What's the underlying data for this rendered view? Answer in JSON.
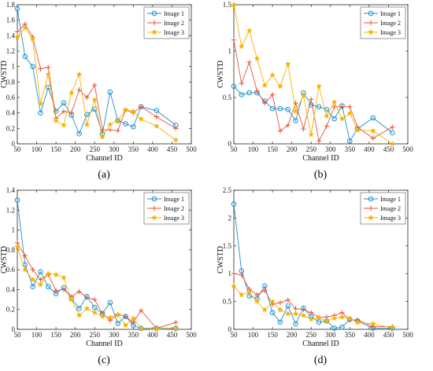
{
  "figure": {
    "legend_placement": "top-right",
    "grid": false,
    "styles": [
      {
        "color": "#1f8fd0",
        "marker": "circle"
      },
      {
        "color": "#e8553a",
        "marker": "plus"
      },
      {
        "color": "#f5b400",
        "marker": "star"
      }
    ]
  },
  "chart_data": [
    {
      "type": "line",
      "caption": "(a)",
      "xlabel": "Channel ID",
      "ylabel": "CWSTD",
      "xlim": [
        50,
        500
      ],
      "ylim": [
        0,
        1.8
      ],
      "xticks": [
        "50",
        "100",
        "150",
        "200",
        "250",
        "300",
        "350",
        "400",
        "450",
        "500"
      ],
      "yticks": [
        "0",
        "0.2",
        "0.4",
        "0.6",
        "0.8",
        "1",
        "1.2",
        "1.4",
        "1.6",
        "1.8"
      ],
      "series": [
        {
          "name": "Image 1",
          "x": [
            50,
            70,
            90,
            110,
            130,
            150,
            170,
            190,
            210,
            230,
            250,
            270,
            290,
            310,
            330,
            350,
            370,
            410,
            460
          ],
          "y": [
            1.75,
            1.13,
            1.0,
            0.4,
            0.73,
            0.42,
            0.53,
            0.37,
            0.13,
            0.38,
            0.45,
            0.13,
            0.67,
            0.3,
            0.26,
            0.22,
            0.48,
            0.43,
            0.24
          ]
        },
        {
          "name": "Image 2",
          "x": [
            50,
            70,
            90,
            110,
            130,
            150,
            170,
            190,
            210,
            230,
            250,
            270,
            290,
            310,
            330,
            350,
            370,
            410,
            460
          ],
          "y": [
            1.45,
            1.55,
            1.38,
            0.97,
            0.99,
            0.33,
            0.42,
            0.4,
            0.7,
            0.6,
            0.76,
            0.18,
            0.18,
            0.17,
            0.44,
            0.4,
            0.48,
            0.35,
            0.2
          ]
        },
        {
          "name": "Image 3",
          "x": [
            50,
            70,
            90,
            110,
            130,
            150,
            170,
            190,
            210,
            230,
            250,
            270,
            290,
            310,
            330,
            350,
            370,
            410,
            460
          ],
          "y": [
            1.38,
            1.5,
            1.35,
            0.52,
            0.9,
            0.3,
            0.24,
            0.66,
            0.9,
            0.25,
            0.57,
            0.09,
            0.25,
            0.3,
            0.44,
            0.42,
            0.32,
            0.23,
            0.05
          ]
        }
      ]
    },
    {
      "type": "line",
      "caption": "(b)",
      "xlabel": "Channel ID",
      "ylabel": "CWSTD",
      "xlim": [
        50,
        500
      ],
      "ylim": [
        0,
        1.5
      ],
      "xticks": [
        "50",
        "100",
        "150",
        "200",
        "250",
        "300",
        "350",
        "400",
        "450",
        "500"
      ],
      "yticks": [
        "0",
        "0.5",
        "1",
        "1.5"
      ],
      "series": [
        {
          "name": "Image 1",
          "x": [
            50,
            70,
            90,
            110,
            130,
            150,
            170,
            190,
            210,
            230,
            250,
            270,
            290,
            310,
            330,
            350,
            370,
            410,
            460
          ],
          "y": [
            0.62,
            0.53,
            0.55,
            0.55,
            0.46,
            0.38,
            0.38,
            0.37,
            0.25,
            0.55,
            0.42,
            0.4,
            0.37,
            0.27,
            0.41,
            0.03,
            0.16,
            0.28,
            0.12
          ]
        },
        {
          "name": "Image 2",
          "x": [
            50,
            70,
            90,
            110,
            130,
            150,
            170,
            190,
            210,
            230,
            250,
            270,
            290,
            310,
            330,
            350,
            370,
            410,
            460
          ],
          "y": [
            1.12,
            0.65,
            0.88,
            0.57,
            0.44,
            0.53,
            0.14,
            0.2,
            0.44,
            0.16,
            0.48,
            0.03,
            0.19,
            0.4,
            0.4,
            0.4,
            0.18,
            0.06,
            0.18
          ]
        },
        {
          "name": "Image 3",
          "x": [
            50,
            70,
            90,
            110,
            130,
            150,
            170,
            190,
            210,
            230,
            250,
            270,
            290,
            310,
            330,
            350,
            370,
            410,
            460
          ],
          "y": [
            1.5,
            1.05,
            1.22,
            0.92,
            0.63,
            0.74,
            0.62,
            0.86,
            0.35,
            0.52,
            0.1,
            0.62,
            0.3,
            0.45,
            0.27,
            0.33,
            0.15,
            0.14,
            0.0
          ]
        }
      ]
    },
    {
      "type": "line",
      "caption": "(c)",
      "xlabel": "Channel ID",
      "ylabel": "CWSTD",
      "xlim": [
        50,
        500
      ],
      "ylim": [
        0,
        1.4
      ],
      "xticks": [
        "50",
        "100",
        "150",
        "200",
        "250",
        "300",
        "350",
        "400",
        "450",
        "500"
      ],
      "yticks": [
        "0",
        "0.2",
        "0.4",
        "0.6",
        "0.8",
        "1",
        "1.2",
        "1.4"
      ],
      "series": [
        {
          "name": "Image 1",
          "x": [
            50,
            70,
            90,
            110,
            130,
            150,
            170,
            190,
            210,
            230,
            250,
            270,
            290,
            310,
            330,
            350,
            370,
            410,
            460
          ],
          "y": [
            1.3,
            0.65,
            0.43,
            0.58,
            0.43,
            0.36,
            0.42,
            0.31,
            0.21,
            0.33,
            0.22,
            0.16,
            0.27,
            0.06,
            0.13,
            0.04,
            0.01,
            0.01,
            0.01
          ]
        },
        {
          "name": "Image 2",
          "x": [
            50,
            70,
            90,
            110,
            130,
            150,
            170,
            190,
            210,
            230,
            250,
            270,
            290,
            310,
            330,
            350,
            370,
            410,
            460
          ],
          "y": [
            0.87,
            0.74,
            0.6,
            0.5,
            0.55,
            0.39,
            0.4,
            0.33,
            0.38,
            0.32,
            0.3,
            0.16,
            0.09,
            0.15,
            0.13,
            0.07,
            0.19,
            0.01,
            0.07
          ]
        },
        {
          "name": "Image 3",
          "x": [
            50,
            70,
            90,
            110,
            130,
            150,
            170,
            190,
            210,
            230,
            250,
            270,
            290,
            310,
            330,
            350,
            370,
            410,
            460
          ],
          "y": [
            0.83,
            0.6,
            0.5,
            0.45,
            0.56,
            0.55,
            0.52,
            0.3,
            0.14,
            0.21,
            0.17,
            0.13,
            0.12,
            0.15,
            0.04,
            0.11,
            0.01,
            0.0,
            0.01
          ]
        }
      ]
    },
    {
      "type": "line",
      "caption": "(d)",
      "xlabel": "Channel ID",
      "ylabel": "CWSTD",
      "xlim": [
        50,
        500
      ],
      "ylim": [
        0,
        2.5
      ],
      "xticks": [
        "50",
        "100",
        "150",
        "200",
        "250",
        "300",
        "350",
        "400",
        "450",
        "500"
      ],
      "yticks": [
        "0",
        "0.5",
        "1",
        "1.5",
        "2",
        "2.5"
      ],
      "series": [
        {
          "name": "Image 1",
          "x": [
            50,
            70,
            90,
            110,
            130,
            150,
            170,
            190,
            210,
            230,
            250,
            270,
            290,
            310,
            330,
            350,
            370,
            410,
            460
          ],
          "y": [
            2.25,
            1.05,
            0.6,
            0.55,
            0.78,
            0.3,
            0.13,
            0.42,
            0.1,
            0.38,
            0.23,
            0.13,
            0.15,
            0.02,
            0.04,
            0.18,
            0.15,
            0.02,
            0.02
          ]
        },
        {
          "name": "Image 2",
          "x": [
            50,
            70,
            90,
            110,
            130,
            150,
            170,
            190,
            210,
            230,
            250,
            270,
            290,
            310,
            330,
            350,
            370,
            410,
            460
          ],
          "y": [
            1.0,
            0.98,
            0.72,
            0.62,
            0.7,
            0.45,
            0.48,
            0.53,
            0.37,
            0.36,
            0.3,
            0.22,
            0.22,
            0.25,
            0.3,
            0.17,
            0.17,
            0.05,
            0.05
          ]
        },
        {
          "name": "Image 3",
          "x": [
            50,
            70,
            90,
            110,
            130,
            150,
            170,
            190,
            210,
            230,
            250,
            270,
            290,
            310,
            330,
            350,
            370,
            410,
            460
          ],
          "y": [
            0.78,
            0.62,
            0.67,
            0.5,
            0.35,
            0.5,
            0.35,
            0.28,
            0.28,
            0.25,
            0.18,
            0.2,
            0.15,
            0.2,
            0.22,
            0.2,
            0.12,
            0.1,
            0.03
          ]
        }
      ]
    }
  ]
}
